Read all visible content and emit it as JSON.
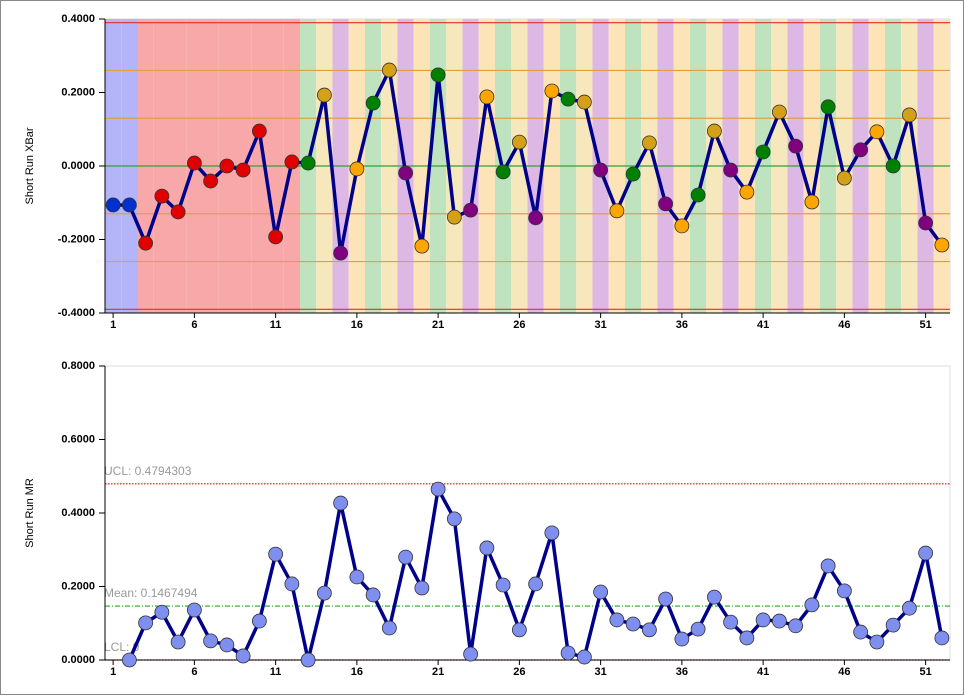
{
  "chart_data": [
    {
      "type": "line",
      "ylabel": "Short Run XBar",
      "x": [
        1,
        2,
        3,
        4,
        5,
        6,
        7,
        8,
        9,
        10,
        11,
        12,
        13,
        14,
        15,
        16,
        17,
        18,
        19,
        20,
        21,
        22,
        23,
        24,
        25,
        26,
        27,
        28,
        29,
        30,
        31,
        32,
        33,
        34,
        35,
        36,
        37,
        38,
        39,
        40,
        41,
        42,
        43,
        44,
        45,
        46,
        47,
        48,
        49,
        50,
        51,
        52
      ],
      "values": [
        -0.106,
        -0.106,
        -0.21,
        -0.082,
        -0.125,
        0.008,
        -0.041,
        0.0,
        -0.011,
        0.095,
        -0.193,
        0.011,
        0.008,
        0.193,
        -0.237,
        -0.008,
        0.171,
        0.261,
        -0.019,
        -0.218,
        0.248,
        -0.139,
        -0.12,
        0.188,
        -0.016,
        0.065,
        -0.141,
        0.204,
        0.182,
        0.174,
        -0.011,
        -0.122,
        -0.022,
        0.063,
        -0.103,
        -0.163,
        -0.079,
        0.095,
        -0.011,
        -0.071,
        0.038,
        0.147,
        0.054,
        -0.098,
        0.161,
        -0.033,
        0.044,
        0.093,
        0.0,
        0.139,
        -0.155,
        -0.215
      ],
      "line_color": "#00008b",
      "point_colors": [
        "#0030d0",
        "#0030d0",
        "#e00000",
        "#e00000",
        "#e00000",
        "#e00000",
        "#e00000",
        "#e00000",
        "#e00000",
        "#e00000",
        "#e00000",
        "#e00000",
        "#008000",
        "#d4a017",
        "#800080",
        "#ffa500",
        "#008000",
        "#d4a017",
        "#800080",
        "#ffa500",
        "#008000",
        "#d4a017",
        "#800080",
        "#ffa500",
        "#008000",
        "#d4a017",
        "#800080",
        "#ffa500",
        "#008000",
        "#d4a017",
        "#800080",
        "#ffa500",
        "#008000",
        "#d4a017",
        "#800080",
        "#ffa500",
        "#008000",
        "#d4a017",
        "#800080",
        "#ffa500",
        "#008000",
        "#d4a017",
        "#800080",
        "#ffa500",
        "#008000",
        "#d4a017",
        "#800080",
        "#ffa500",
        "#008000",
        "#d4a017",
        "#800080",
        "#ffa500"
      ],
      "reference_lines": [
        {
          "value": 0.39,
          "color": "#e03030"
        },
        {
          "value": 0.26,
          "color": "#e0a040"
        },
        {
          "value": 0.13,
          "color": "#e0a040"
        },
        {
          "value": 0,
          "color": "#3a9a3a"
        },
        {
          "value": -0.13,
          "color": "#e0a040"
        },
        {
          "value": -0.26,
          "color": "#e0a040"
        },
        {
          "value": -0.39,
          "color": "#e03030"
        }
      ],
      "xlim": [
        0.5,
        52.5
      ],
      "xticks": [
        1,
        6,
        11,
        16,
        21,
        26,
        31,
        36,
        41,
        46,
        51
      ],
      "ylim": [
        -0.4,
        0.4
      ],
      "yticks": [
        {
          "value": -0.4,
          "label": "-0.4000"
        },
        {
          "value": -0.2,
          "label": "-0.2000"
        },
        {
          "value": 0,
          "label": "0.0000"
        },
        {
          "value": 0.2,
          "label": "0.2000"
        },
        {
          "value": 0.4,
          "label": "0.4000"
        }
      ]
    },
    {
      "type": "line",
      "ylabel": "Short Run MR",
      "x": [
        1,
        2,
        3,
        4,
        5,
        6,
        7,
        8,
        9,
        10,
        11,
        12,
        13,
        14,
        15,
        16,
        17,
        18,
        19,
        20,
        21,
        22,
        23,
        24,
        25,
        26,
        27,
        28,
        29,
        30,
        31,
        32,
        33,
        34,
        35,
        36,
        37,
        38,
        39,
        40,
        41,
        42,
        43,
        44,
        45,
        46,
        47,
        48,
        49,
        50,
        51,
        52
      ],
      "values": [
        null,
        0.0,
        0.101,
        0.13,
        0.049,
        0.136,
        0.052,
        0.041,
        0.011,
        0.106,
        0.288,
        0.207,
        0.0,
        0.182,
        0.427,
        0.226,
        0.177,
        0.087,
        0.28,
        0.196,
        0.465,
        0.384,
        0.016,
        0.305,
        0.204,
        0.082,
        0.207,
        0.346,
        0.019,
        0.008,
        0.185,
        0.109,
        0.098,
        0.082,
        0.166,
        0.057,
        0.084,
        0.171,
        0.103,
        0.06,
        0.109,
        0.106,
        0.093,
        0.15,
        0.256,
        0.188,
        0.076,
        0.049,
        0.095,
        0.141,
        0.291,
        0.06
      ],
      "line_color": "#00008b",
      "point_color": "#7f8ff0",
      "control_lines": [
        {
          "label": "UCL: 0.4794303",
          "value": 0.4794303,
          "color": "#ff0000"
        },
        {
          "label": "Mean: 0.1467494",
          "value": 0.1467494,
          "color": "#22aa22"
        },
        {
          "label": "LCL: 0",
          "value": 0,
          "color": "#ff0000"
        }
      ],
      "xlim": [
        0.5,
        52.5
      ],
      "xticks": [
        1,
        6,
        11,
        16,
        21,
        26,
        31,
        36,
        41,
        46,
        51
      ],
      "ylim": [
        0,
        0.8
      ],
      "yticks": [
        {
          "value": 0,
          "label": "0.0000"
        },
        {
          "value": 0.2,
          "label": "0.2000"
        },
        {
          "value": 0.4,
          "label": "0.4000"
        },
        {
          "value": 0.6,
          "label": "0.6000"
        },
        {
          "value": 0.8,
          "label": "0.8000"
        }
      ]
    }
  ]
}
